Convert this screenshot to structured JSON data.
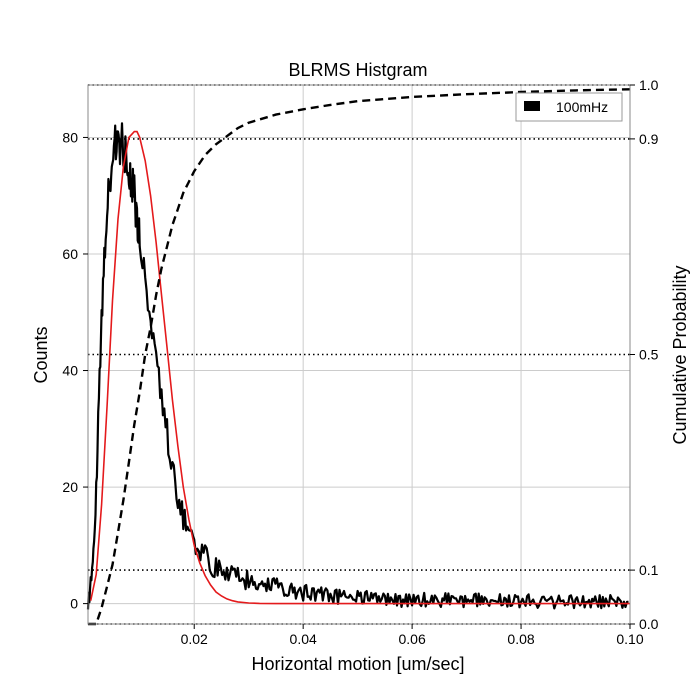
{
  "chart_data": {
    "type": "line",
    "title": "BLRMS Histgram",
    "xlabel": "Horizontal motion [um/sec]",
    "ylabel": "Counts",
    "y2label": "Cumulative Probability",
    "xlim": [
      0.0005,
      0.1
    ],
    "ylim": [
      -3.5,
      89
    ],
    "y2lim": [
      0.0,
      1.0
    ],
    "grid": true,
    "legend": {
      "placement": "top-right",
      "entries": [
        "100mHz"
      ]
    },
    "x_ticks": [
      {
        "value": 0.02,
        "label": "0.02"
      },
      {
        "value": 0.04,
        "label": "0.04"
      },
      {
        "value": 0.06,
        "label": "0.06"
      },
      {
        "value": 0.08,
        "label": "0.08"
      },
      {
        "value": 0.1,
        "label": "0.10"
      }
    ],
    "y_ticks": [
      {
        "value": 0,
        "label": "0"
      },
      {
        "value": 20,
        "label": "20"
      },
      {
        "value": 40,
        "label": "40"
      },
      {
        "value": 60,
        "label": "60"
      },
      {
        "value": 80,
        "label": "80"
      }
    ],
    "y2_ticks": [
      {
        "value": 0.0,
        "label": "0.0"
      },
      {
        "value": 0.1,
        "label": "0.1"
      },
      {
        "value": 0.5,
        "label": "0.5"
      },
      {
        "value": 0.9,
        "label": "0.9"
      },
      {
        "value": 1.0,
        "label": "1.0"
      }
    ],
    "reference_lines_y2": [
      0.0,
      0.1,
      0.5,
      0.9,
      1.0
    ],
    "series": [
      {
        "name": "100mHz",
        "kind": "histogram",
        "color": "#000000",
        "x": [
          0.0005,
          0.001,
          0.0015,
          0.002,
          0.0025,
          0.003,
          0.0035,
          0.004,
          0.0045,
          0.005,
          0.0055,
          0.006,
          0.0065,
          0.007,
          0.0075,
          0.008,
          0.0085,
          0.009,
          0.0095,
          0.01,
          0.011,
          0.012,
          0.013,
          0.014,
          0.015,
          0.016,
          0.017,
          0.018,
          0.019,
          0.02,
          0.022,
          0.024,
          0.026,
          0.028,
          0.03,
          0.033,
          0.036,
          0.04,
          0.045,
          0.05,
          0.055,
          0.06,
          0.07,
          0.08,
          0.09,
          0.1
        ],
        "y": [
          0,
          3,
          10,
          20,
          34,
          48,
          60,
          68,
          73,
          77,
          80,
          80,
          79,
          78,
          77,
          75,
          73,
          70,
          67,
          63,
          57,
          50,
          43,
          36,
          30,
          23,
          18,
          15,
          13,
          11,
          8,
          6,
          5.5,
          4.5,
          4,
          3.2,
          2.6,
          2,
          1.4,
          1,
          0.8,
          0.6,
          0.5,
          0.4,
          0.35,
          0.3
        ]
      },
      {
        "name": "",
        "kind": "fit",
        "color": "#e41a1c",
        "x": [
          0.001,
          0.002,
          0.003,
          0.004,
          0.005,
          0.006,
          0.007,
          0.008,
          0.009,
          0.0095,
          0.01,
          0.011,
          0.012,
          0.013,
          0.014,
          0.015,
          0.016,
          0.017,
          0.018,
          0.019,
          0.02,
          0.021,
          0.022,
          0.023,
          0.024,
          0.025,
          0.026,
          0.027,
          0.028,
          0.03,
          0.032,
          0.035,
          0.04,
          0.05,
          0.06,
          0.07,
          0.08,
          0.09,
          0.1
        ],
        "y": [
          0.5,
          5,
          17,
          34,
          52,
          66,
          75,
          80,
          81,
          81,
          80,
          76,
          70,
          62,
          53,
          44,
          35,
          27,
          20,
          14.5,
          10,
          7,
          4.8,
          3.2,
          2,
          1.3,
          0.8,
          0.5,
          0.3,
          0.1,
          0.03,
          0,
          0,
          0,
          0,
          0,
          0,
          0,
          0
        ]
      },
      {
        "name": "",
        "kind": "cumulative",
        "axis": "y2",
        "color": "#000000",
        "x": [
          0.0005,
          0.002,
          0.003,
          0.004,
          0.005,
          0.006,
          0.007,
          0.008,
          0.009,
          0.01,
          0.011,
          0.012,
          0.013,
          0.014,
          0.015,
          0.016,
          0.017,
          0.018,
          0.019,
          0.02,
          0.022,
          0.024,
          0.026,
          0.028,
          0.03,
          0.035,
          0.04,
          0.045,
          0.05,
          0.06,
          0.07,
          0.08,
          0.09,
          0.1
        ],
        "y": [
          0.0,
          0.0,
          0.03,
          0.07,
          0.11,
          0.17,
          0.23,
          0.3,
          0.37,
          0.43,
          0.5,
          0.55,
          0.61,
          0.66,
          0.7,
          0.74,
          0.77,
          0.8,
          0.82,
          0.84,
          0.87,
          0.89,
          0.905,
          0.92,
          0.93,
          0.945,
          0.955,
          0.963,
          0.97,
          0.978,
          0.983,
          0.987,
          0.99,
          0.992
        ]
      }
    ]
  }
}
